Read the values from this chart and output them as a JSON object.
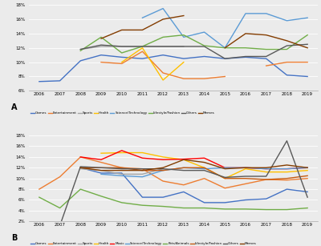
{
  "years": [
    2006,
    2007,
    2008,
    2009,
    2010,
    2011,
    2012,
    2013,
    2014,
    2015,
    2016,
    2017,
    2018,
    2019
  ],
  "panel_A": {
    "title": "A",
    "ylim": [
      0.06,
      0.18
    ],
    "yticks": [
      0.06,
      0.08,
      0.1,
      0.12,
      0.14,
      0.16,
      0.18
    ],
    "series": {
      "Games": [
        0.073,
        0.074,
        0.102,
        0.11,
        0.107,
        0.105,
        0.11,
        0.105,
        0.108,
        0.105,
        0.107,
        0.105,
        0.082,
        0.08
      ],
      "Entertainment": [
        null,
        null,
        null,
        0.1,
        0.098,
        0.115,
        0.085,
        0.077,
        0.077,
        0.08,
        null,
        0.095,
        0.1,
        0.1
      ],
      "Sports": [
        null,
        null,
        0.118,
        0.122,
        0.122,
        0.122,
        0.122,
        0.122,
        null,
        null,
        null,
        null,
        null,
        null
      ],
      "Health": [
        null,
        null,
        null,
        null,
        0.1,
        0.12,
        0.075,
        0.1,
        null,
        null,
        null,
        null,
        null,
        null
      ],
      "Science/Technology": [
        null,
        null,
        null,
        null,
        null,
        0.162,
        0.175,
        0.135,
        0.142,
        0.12,
        0.168,
        0.168,
        0.158,
        0.162
      ],
      "Lifestyle/Fashion": [
        null,
        null,
        0.116,
        0.135,
        0.113,
        0.122,
        0.135,
        0.138,
        0.123,
        0.12,
        0.12,
        0.118,
        0.118,
        0.138
      ],
      "Others": [
        null,
        null,
        0.118,
        0.124,
        0.122,
        0.122,
        0.122,
        0.122,
        0.122,
        0.105,
        0.108,
        0.108,
        0.123,
        0.125
      ],
      "Memes": [
        null,
        null,
        null,
        0.133,
        0.145,
        0.145,
        0.16,
        0.165,
        null,
        0.12,
        0.14,
        0.138,
        0.13,
        0.12
      ]
    },
    "colors": {
      "Games": "#4472C4",
      "Entertainment": "#ED7D31",
      "Sports": "#A5A5A5",
      "Health": "#FFC000",
      "Science/Technology": "#5B9BD5",
      "Lifestyle/Fashion": "#70AD47",
      "Others": "#595959",
      "Memes": "#833C00"
    },
    "legend_order": [
      "Games",
      "Entertainment",
      "Sports",
      "Health",
      "Science/Technology",
      "Lifestyle/Fashion",
      "Others",
      "Memes"
    ]
  },
  "panel_B": {
    "title": "B",
    "ylim": [
      0.02,
      0.18
    ],
    "yticks": [
      0.02,
      0.04,
      0.06,
      0.08,
      0.1,
      0.12,
      0.14,
      0.16,
      0.18
    ],
    "series": {
      "Games": [
        null,
        null,
        0.12,
        0.11,
        0.11,
        0.065,
        0.065,
        0.075,
        0.055,
        0.055,
        0.06,
        0.062,
        0.08,
        0.075
      ],
      "Entertainment": [
        0.08,
        0.103,
        0.14,
        0.13,
        0.12,
        0.118,
        0.095,
        0.088,
        0.1,
        0.082,
        0.09,
        0.098,
        0.097,
        0.1
      ],
      "Sports": [
        null,
        null,
        0.118,
        0.115,
        0.108,
        0.108,
        0.118,
        null,
        null,
        null,
        null,
        null,
        null,
        null
      ],
      "Health": [
        null,
        null,
        null,
        0.147,
        0.148,
        0.148,
        0.14,
        0.135,
        0.12,
        0.1,
        0.118,
        0.112,
        0.112,
        0.115
      ],
      "Music": [
        null,
        null,
        0.14,
        0.135,
        0.152,
        0.138,
        0.135,
        0.136,
        0.138,
        0.12,
        0.12,
        0.118,
        0.118,
        0.12
      ],
      "Science/Technology": [
        null,
        null,
        null,
        0.108,
        0.105,
        0.103,
        0.115,
        0.12,
        0.118,
        0.12,
        0.12,
        0.118,
        0.118,
        0.12
      ],
      "Pets/Animals": [
        0.065,
        0.045,
        0.08,
        0.067,
        0.055,
        0.05,
        0.048,
        0.045,
        0.045,
        0.043,
        0.043,
        0.042,
        0.042,
        0.045
      ],
      "Lifestyle/Fashion": [
        null,
        null,
        0.12,
        0.12,
        0.12,
        0.115,
        0.115,
        0.12,
        0.12,
        0.1,
        0.1,
        0.098,
        0.1,
        0.105
      ],
      "Others": [
        null,
        0.012,
        0.122,
        0.12,
        0.118,
        0.118,
        0.118,
        0.115,
        0.115,
        0.102,
        0.104,
        0.104,
        0.17,
        0.065
      ],
      "Memes": [
        null,
        null,
        0.12,
        0.115,
        0.115,
        0.115,
        0.12,
        0.135,
        0.13,
        0.118,
        0.12,
        0.12,
        0.125,
        0.12
      ]
    },
    "colors": {
      "Games": "#4472C4",
      "Entertainment": "#ED7D31",
      "Sports": "#A5A5A5",
      "Health": "#FFC000",
      "Music": "#FF0000",
      "Science/Technology": "#5B9BD5",
      "Pets/Animals": "#70AD47",
      "Lifestyle/Fashion": "#C55A11",
      "Others": "#595959",
      "Memes": "#833C00"
    },
    "legend_order": [
      "Games",
      "Entertainment",
      "Sports",
      "Health",
      "Music",
      "Science/Technology",
      "Pets/Animals",
      "Lifestyle/Fashion",
      "Others",
      "Memes"
    ]
  },
  "background_color": "#EBEBEB",
  "plot_bg_color": "#EBEBEB",
  "line_width": 1.0
}
